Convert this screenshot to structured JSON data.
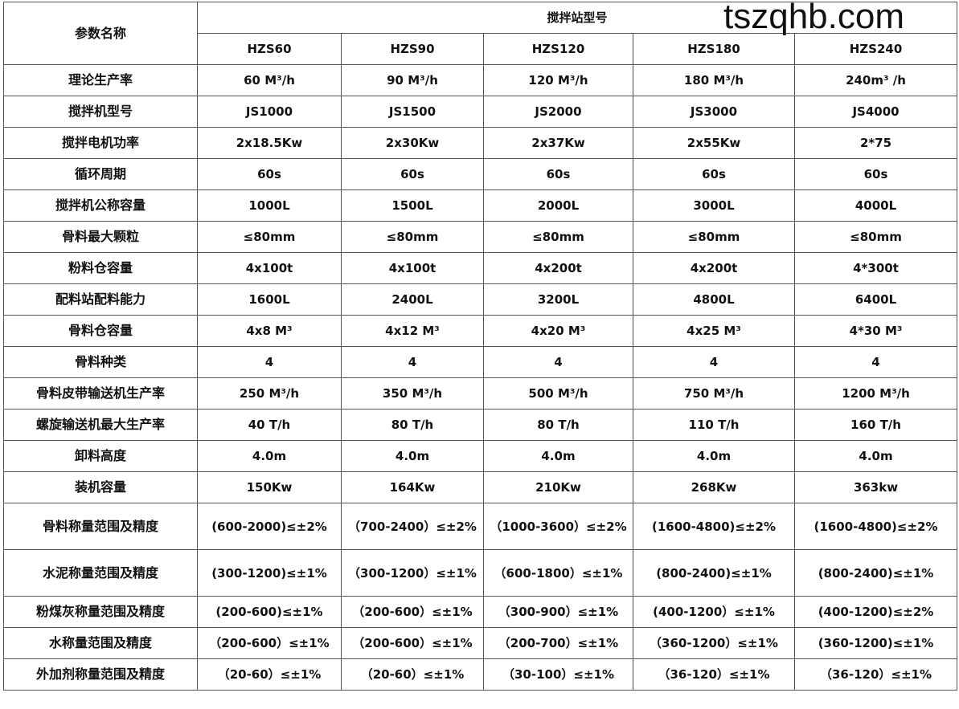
{
  "header": {
    "param_label": "参数名称",
    "group_label": "搅拌站型号",
    "models": [
      "HZS60",
      "HZS90",
      "HZS120",
      "HZS180",
      "HZS240"
    ]
  },
  "rows": [
    {
      "name": "理论生产率",
      "values": [
        "60 M³/h",
        "90 M³/h",
        "120 M³/h",
        "180 M³/h",
        "240m³ /h"
      ]
    },
    {
      "name": "搅拌机型号",
      "values": [
        "JS1000",
        "JS1500",
        "JS2000",
        "JS3000",
        "JS4000"
      ]
    },
    {
      "name": "搅拌电机功率",
      "values": [
        "2x18.5Kw",
        "2x30Kw",
        "2x37Kw",
        "2x55Kw",
        "2*75"
      ]
    },
    {
      "name": "循环周期",
      "values": [
        "60s",
        "60s",
        "60s",
        "60s",
        "60s"
      ]
    },
    {
      "name": "搅拌机公称容量",
      "values": [
        "1000L",
        "1500L",
        "2000L",
        "3000L",
        "4000L"
      ]
    },
    {
      "name": "骨料最大颗粒",
      "values": [
        "≤80mm",
        "≤80mm",
        "≤80mm",
        "≤80mm",
        "≤80mm"
      ]
    },
    {
      "name": "粉料仓容量",
      "values": [
        "4x100t",
        "4x100t",
        "4x200t",
        "4x200t",
        "4*300t"
      ]
    },
    {
      "name": "配料站配料能力",
      "values": [
        "1600L",
        "2400L",
        "3200L",
        "4800L",
        "6400L"
      ]
    },
    {
      "name": "骨料仓容量",
      "values": [
        "4x8 M³",
        "4x12 M³",
        "4x20 M³",
        "4x25 M³",
        "4*30 M³"
      ]
    },
    {
      "name": "骨料种类",
      "values": [
        "4",
        "4",
        "4",
        "4",
        "4"
      ]
    },
    {
      "name": "骨料皮带输送机生产率",
      "values": [
        "250 M³/h",
        "350 M³/h",
        "500 M³/h",
        "750 M³/h",
        "1200 M³/h"
      ]
    },
    {
      "name": "螺旋输送机最大生产率",
      "values": [
        "40 T/h",
        "80 T/h",
        "80 T/h",
        "110 T/h",
        "160 T/h"
      ]
    },
    {
      "name": "卸料高度",
      "values": [
        "4.0m",
        "4.0m",
        "4.0m",
        "4.0m",
        "4.0m"
      ]
    },
    {
      "name": "装机容量",
      "values": [
        "150Kw",
        "164Kw",
        "210Kw",
        "268Kw",
        "363kw"
      ]
    },
    {
      "name": "骨料称量范围及精度",
      "tall": true,
      "values": [
        "(600-2000)≤±2%",
        "（700-2400）≤±2%",
        "（1000-3600）≤±2%",
        "(1600-4800)≤±2%",
        "(1600-4800)≤±2%"
      ]
    },
    {
      "name": "水泥称量范围及精度",
      "tall": true,
      "values": [
        "(300-1200)≤±1%",
        "（300-1200）≤±1%",
        "（600-1800）≤±1%",
        "(800-2400)≤±1%",
        "(800-2400)≤±1%"
      ]
    },
    {
      "name": "粉煤灰称量范围及精度",
      "values": [
        "(200-600)≤±1%",
        "（200-600）≤±1%",
        "（300-900）≤±1%",
        "(400-1200）≤±1%",
        "(400-1200)≤±2%"
      ]
    },
    {
      "name": "水称量范围及精度",
      "values": [
        "（200-600）≤±1%",
        "（200-600）≤±1%",
        "（200-700）≤±1%",
        "（360-1200）≤±1%",
        "(360-1200)≤±1%"
      ]
    },
    {
      "name": "外加剂称量范围及精度",
      "values": [
        "（20-60）≤±1%",
        "（20-60）≤±1%",
        "（30-100）≤±1%",
        "（36-120）≤±1%",
        "（36-120）≤±1%"
      ]
    }
  ],
  "watermark": "tszqhb.com"
}
